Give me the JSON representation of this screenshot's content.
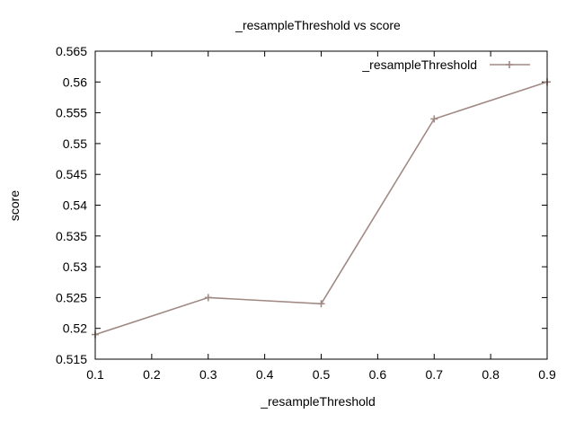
{
  "chart_data": {
    "type": "line",
    "title": "_resampleThreshold vs score",
    "xlabel": "_resampleThreshold",
    "ylabel": "score",
    "xlim": [
      0.1,
      0.9
    ],
    "ylim": [
      0.515,
      0.565
    ],
    "xticks": [
      "0.1",
      "0.2",
      "0.3",
      "0.4",
      "0.5",
      "0.6",
      "0.7",
      "0.8",
      "0.9"
    ],
    "yticks": [
      "0.515",
      "0.52",
      "0.525",
      "0.53",
      "0.535",
      "0.54",
      "0.545",
      "0.55",
      "0.555",
      "0.56",
      "0.565"
    ],
    "grid": false,
    "legend_position": "top-right",
    "series": [
      {
        "name": "_resampleThreshold",
        "color": "#a08a83",
        "marker": "plus",
        "x": [
          0.1,
          0.3,
          0.5,
          0.7,
          0.9
        ],
        "y": [
          0.519,
          0.525,
          0.524,
          0.554,
          0.56
        ]
      }
    ]
  }
}
